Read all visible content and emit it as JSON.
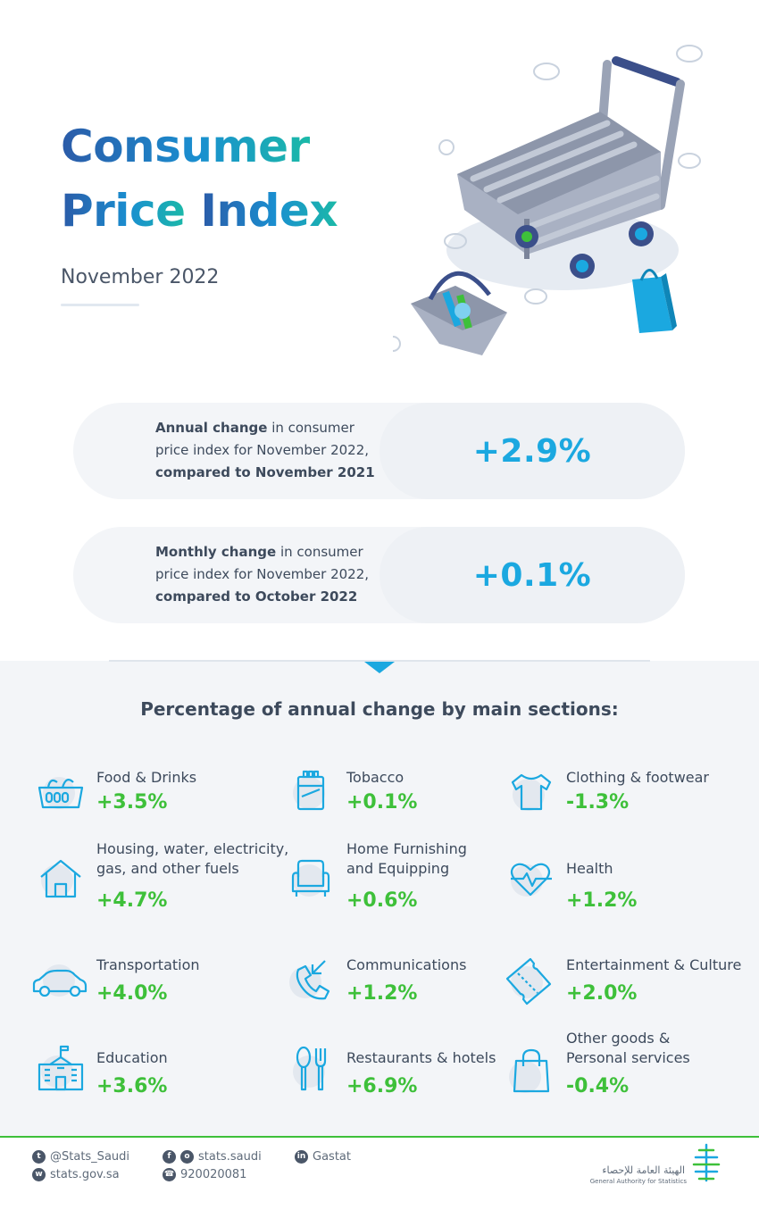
{
  "header": {
    "title_line1": "Consumer",
    "title_line2_a": "Price",
    "title_line2_b": "Index",
    "subtitle": "November 2022"
  },
  "annual": {
    "bold_lead": "Annual change",
    "text": " in consumer price index for November 2022, ",
    "bold_tail": "compared to November 2021",
    "value": "+2.9%"
  },
  "monthly": {
    "bold_lead": "Monthly change",
    "text": " in consumer price index for November 2022, ",
    "bold_tail": "compared to October 2022",
    "value": "+0.1%"
  },
  "sections": {
    "heading": "Percentage of annual change by main sections:",
    "items": [
      {
        "label": "Food & Drinks",
        "value": "+3.5%",
        "icon": "basket-icon"
      },
      {
        "label": "Tobacco",
        "value": "+0.1%",
        "icon": "cigarette-pack-icon"
      },
      {
        "label": "Clothing & footwear",
        "value": "-1.3%",
        "icon": "tshirt-icon"
      },
      {
        "label": "Housing, water, electricity,",
        "label2": "gas, and other fuels",
        "value": "+4.7%",
        "icon": "house-icon"
      },
      {
        "label": "Home Furnishing",
        "label2": "and Equipping",
        "value": "+0.6%",
        "icon": "armchair-icon"
      },
      {
        "label": "Health",
        "value": "+1.2%",
        "icon": "heart-pulse-icon"
      },
      {
        "label": "Transportation",
        "value": "+4.0%",
        "icon": "car-icon"
      },
      {
        "label": "Communications",
        "value": "+1.2%",
        "icon": "phone-icon"
      },
      {
        "label": "Entertainment & Culture",
        "value": "+2.0%",
        "icon": "ticket-icon"
      },
      {
        "label": "Education",
        "value": "+3.6%",
        "icon": "school-icon"
      },
      {
        "label": "Restaurants & hotels",
        "value": "+6.9%",
        "icon": "cutlery-icon"
      },
      {
        "label": "Other goods &",
        "label2": "Personal services",
        "value": "-0.4%",
        "icon": "shopping-bag-icon"
      }
    ]
  },
  "footer": {
    "twitter": "@Stats_Saudi",
    "web": "stats.gov.sa",
    "social": "stats.saudi",
    "phone": "920020081",
    "linkedin": "Gastat",
    "logo_ar": "الهيئة العامة للإحصاء",
    "logo_en": "General Authority for Statistics"
  },
  "colors": {
    "accent_blue": "#1ba8e0",
    "accent_green": "#3ec03a",
    "title_navy": "#2b5ba8",
    "text": "#3d4a5c"
  }
}
